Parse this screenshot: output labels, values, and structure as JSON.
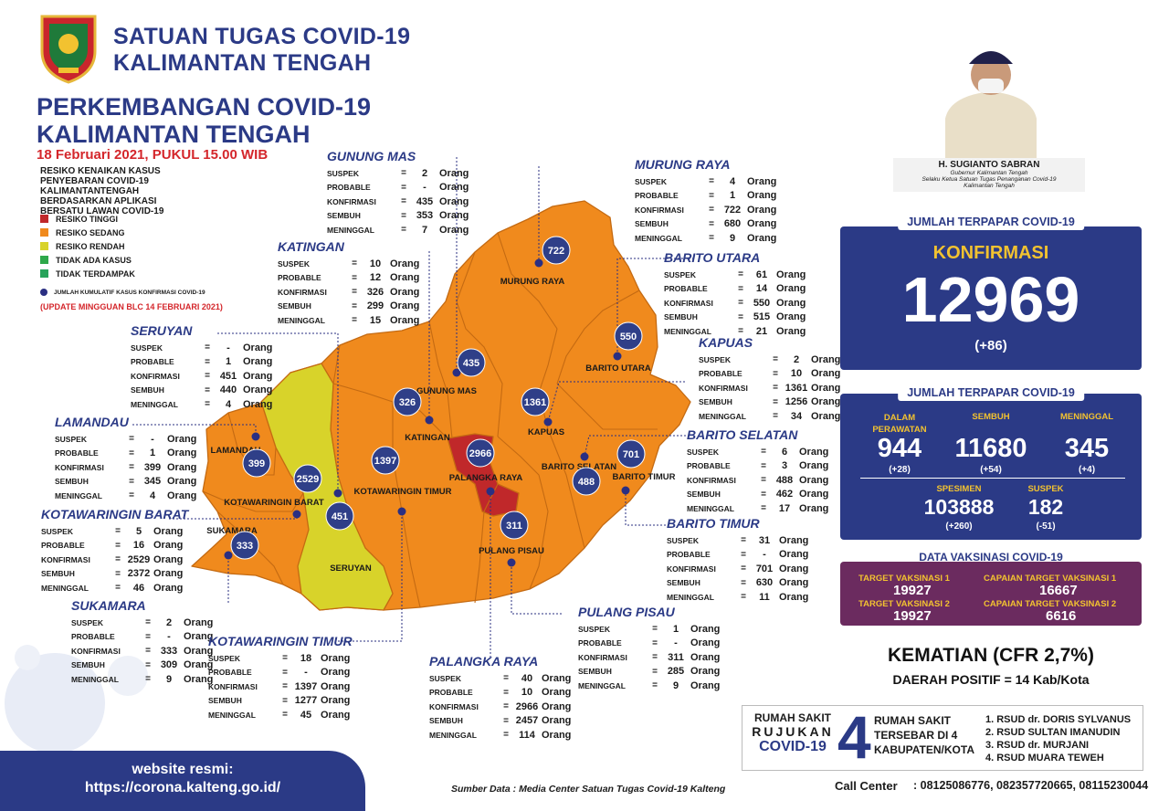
{
  "header": {
    "org_line1": "SATUAN TUGAS COVID-19",
    "org_line2": "KALIMANTAN TENGAH",
    "title_line1": "PERKEMBANGAN COVID-19",
    "title_line2": "KALIMANTAN TENGAH",
    "date": "18 Februari 2021, PUKUL 15.00 WIB",
    "logo": "provincial-crest-logo"
  },
  "risk": {
    "title": "RESIKO KENAIKAN KASUS PENYEBARAN COVID-19 KALIMANTANTENGAH BERDASARKAN APLIKASI BERSATU LAWAN COVID-19",
    "items": [
      {
        "label": "RESIKO TINGGI",
        "color": "#c0282a"
      },
      {
        "label": "RESIKO SEDANG",
        "color": "#f08a1d"
      },
      {
        "label": "RESIKO RENDAH",
        "color": "#d8d32a"
      },
      {
        "label": "TIDAK ADA KASUS",
        "color": "#2ea84a"
      },
      {
        "label": "TIDAK TERDAMPAK",
        "color": "#27a35a"
      }
    ],
    "dot_note": "JUMLAH KUMULATIF KASUS KONFIRMASI COVID-19",
    "update_note": "(UPDATE MINGGUAN BLC 14 FEBRUARI 2021)"
  },
  "stat_labels": {
    "suspek": "SUSPEK",
    "probable": "PROBABLE",
    "konfirmasi": "KONFIRMASI",
    "sembuh": "SEMBUH",
    "meninggal": "MENINGGAL",
    "eq": "=",
    "unit": "Orang"
  },
  "regions": [
    {
      "name": "GUNUNG MAS",
      "suspek": "2",
      "probable": "-",
      "konfirmasi": "435",
      "sembuh": "353",
      "meninggal": "7"
    },
    {
      "name": "MURUNG RAYA",
      "suspek": "4",
      "probable": "1",
      "konfirmasi": "722",
      "sembuh": "680",
      "meninggal": "9"
    },
    {
      "name": "KATINGAN",
      "suspek": "10",
      "probable": "12",
      "konfirmasi": "326",
      "sembuh": "299",
      "meninggal": "15"
    },
    {
      "name": "BARITO UTARA",
      "suspek": "61",
      "probable": "14",
      "konfirmasi": "550",
      "sembuh": "515",
      "meninggal": "21"
    },
    {
      "name": "SERUYAN",
      "suspek": "-",
      "probable": "1",
      "konfirmasi": "451",
      "sembuh": "440",
      "meninggal": "4"
    },
    {
      "name": "KAPUAS",
      "suspek": "2",
      "probable": "10",
      "konfirmasi": "1361",
      "sembuh": "1256",
      "meninggal": "34"
    },
    {
      "name": "LAMANDAU",
      "suspek": "-",
      "probable": "1",
      "konfirmasi": "399",
      "sembuh": "345",
      "meninggal": "4"
    },
    {
      "name": "BARITO SELATAN",
      "suspek": "6",
      "probable": "3",
      "konfirmasi": "488",
      "sembuh": "462",
      "meninggal": "17"
    },
    {
      "name": "KOTAWARINGIN BARAT",
      "suspek": "5",
      "probable": "16",
      "konfirmasi": "2529",
      "sembuh": "2372",
      "meninggal": "46"
    },
    {
      "name": "BARITO TIMUR",
      "suspek": "31",
      "probable": "-",
      "konfirmasi": "701",
      "sembuh": "630",
      "meninggal": "11"
    },
    {
      "name": "SUKAMARA",
      "suspek": "2",
      "probable": "-",
      "konfirmasi": "333",
      "sembuh": "309",
      "meninggal": "9"
    },
    {
      "name": "PULANG PISAU",
      "suspek": "1",
      "probable": "-",
      "konfirmasi": "311",
      "sembuh": "285",
      "meninggal": "9"
    },
    {
      "name": "KOTAWARINGIN TIMUR",
      "suspek": "18",
      "probable": "-",
      "konfirmasi": "1397",
      "sembuh": "1277",
      "meninggal": "45"
    },
    {
      "name": "PALANGKA RAYA",
      "suspek": "40",
      "probable": "10",
      "konfirmasi": "2966",
      "sembuh": "2457",
      "meninggal": "114"
    }
  ],
  "map": {
    "labels": [
      "MURUNG RAYA",
      "BARITO UTARA",
      "GUNUNG MAS",
      "KATINGAN",
      "KAPUAS",
      "LAMANDAU",
      "PALANGKA RAYA",
      "BARITO SELATAN",
      "BARITO TIMUR",
      "KOTAWARINGIN BARAT",
      "KOTAWARINGIN TIMUR",
      "SUKAMARA",
      "SERUYAN",
      "PULANG PISAU"
    ],
    "bubbles": [
      "722",
      "550",
      "435",
      "326",
      "1361",
      "2966",
      "399",
      "2529",
      "1397",
      "451",
      "333",
      "311",
      "488",
      "701"
    ]
  },
  "governor": {
    "name": "H. SUGIANTO SABRAN",
    "role1": "Gubernur Kalimantan Tengah",
    "role2": "Selaku Ketua Satuan Tugas Penanganan Covid-19",
    "role3": "Kalimantan Tengah"
  },
  "confirmed": {
    "title": "JUMLAH TERPAPAR COVID-19",
    "label": "KONFIRMASI",
    "total": "12969",
    "delta": "(+86)"
  },
  "breakdown": {
    "title": "JUMLAH TERPAPAR COVID-19",
    "dalam_label": "DALAM PERAWATAN",
    "dalam_value": "944",
    "dalam_delta": "(+28)",
    "sembuh_label": "SEMBUH",
    "sembuh_value": "11680",
    "sembuh_delta": "(+54)",
    "meninggal_label": "MENINGGAL",
    "meninggal_value": "345",
    "meninggal_delta": "(+4)",
    "spesimen_label": "SPESIMEN",
    "spesimen_value": "103888",
    "spesimen_delta": "(+260)",
    "suspek_label": "SUSPEK",
    "suspek_value": "182",
    "suspek_delta": "(-51)"
  },
  "vaccine": {
    "title": "DATA VAKSINASI COVID-19",
    "t1_label": "TARGET VAKSINASI 1",
    "t1_value": "19927",
    "c1_label": "CAPAIAN TARGET VAKSINASI 1",
    "c1_value": "16667",
    "t2_label": "TARGET VAKSINASI 2",
    "t2_value": "19927",
    "c2_label": "CAPAIAN TARGET VAKSINASI 2",
    "c2_value": "6616"
  },
  "cfr": {
    "line1": "KEMATIAN (CFR 2,7%)",
    "line2": "DAERAH POSITIF = 14 Kab/Kota"
  },
  "hospital": {
    "rs_line1": "RUMAH SAKIT",
    "rs_line2": "RUJUKAN",
    "rs_line3": "COVID-19",
    "big_number": "4",
    "mid_line1": "RUMAH SAKIT",
    "mid_line2": "TERSEBAR DI 4",
    "mid_line3": "KABUPATEN/KOTA",
    "list": [
      "1. RSUD dr. DORIS SYLVANUS",
      "2. RSUD SULTAN IMANUDIN",
      "3. RSUD dr. MURJANI",
      "4. RSUD MUARA TEWEH"
    ]
  },
  "call_center": {
    "label": "Call Center",
    "numbers": ": 08125086776, 082357720665, 08115230044"
  },
  "footer": {
    "website_label": "website resmi:",
    "url": "https://corona.kalteng.go.id/"
  },
  "source": "Sumber Data : Media Center Satuan Tugas Covid-19 Kalteng"
}
